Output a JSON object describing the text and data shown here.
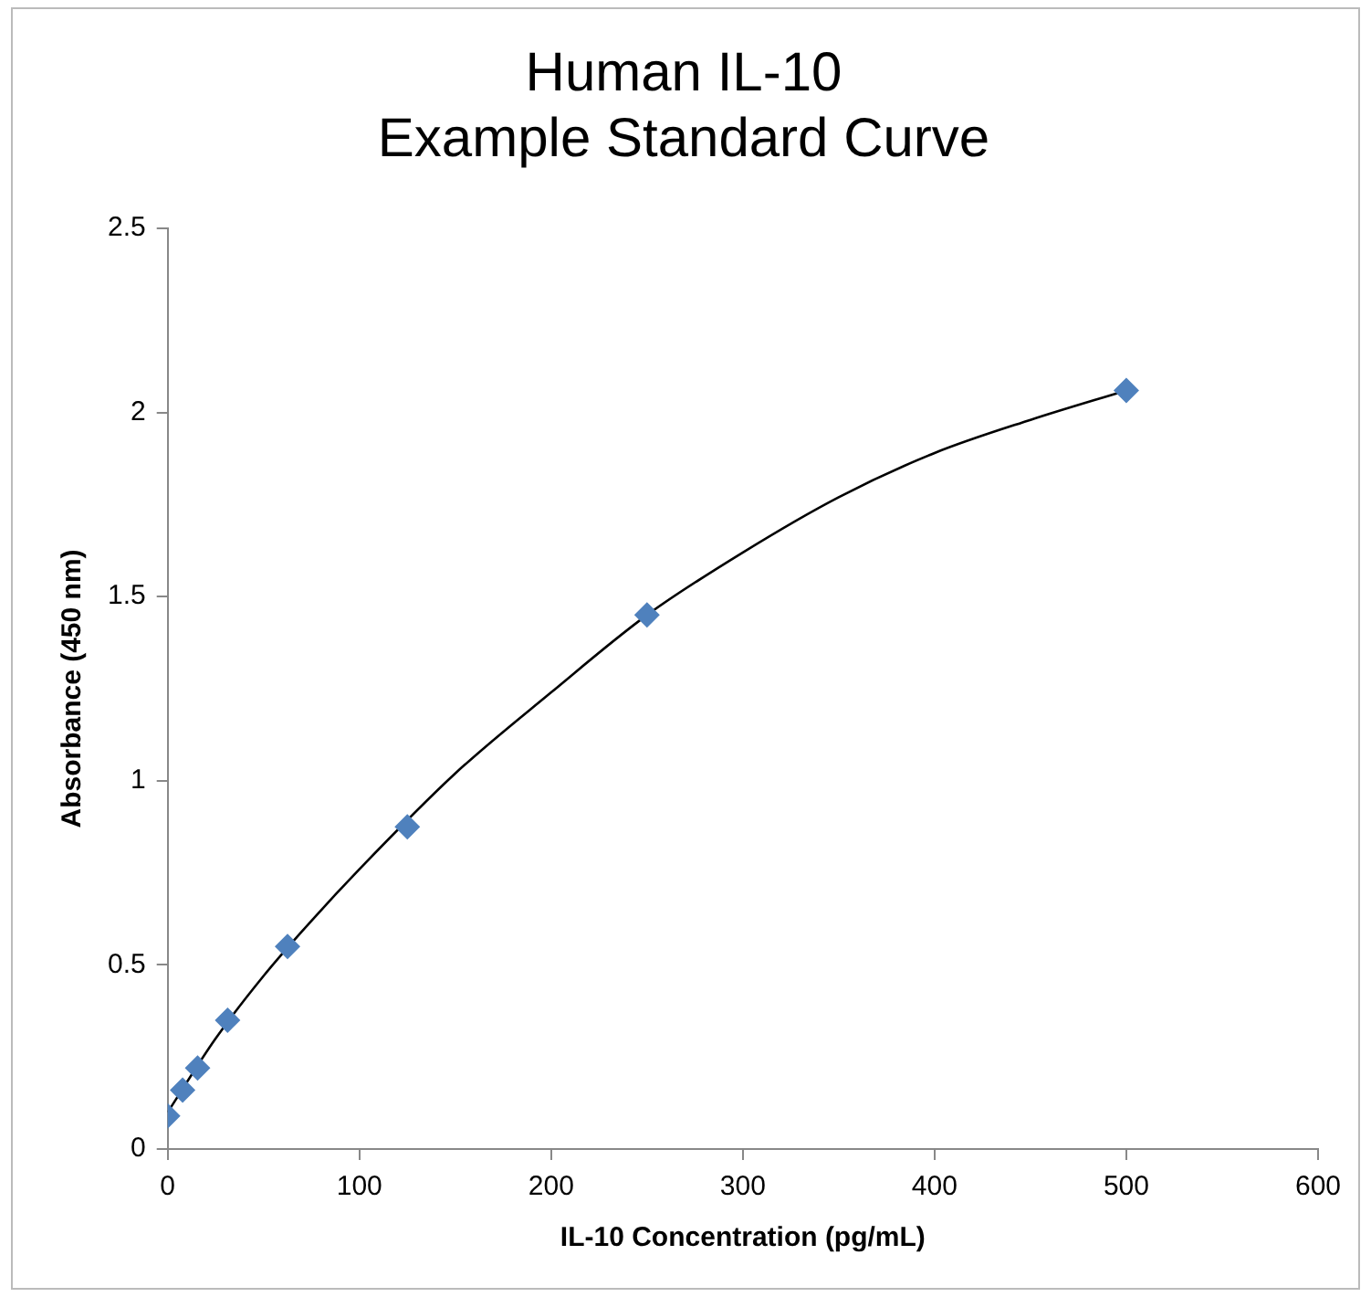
{
  "chart_data": {
    "type": "scatter",
    "title": "Human IL-10\nExample Standard Curve",
    "xlabel": "IL-10 Concentration (pg/mL)",
    "ylabel": "Absorbance (450 nm)",
    "xlim": [
      0,
      600
    ],
    "xticks": [
      0,
      100,
      200,
      300,
      400,
      500,
      600
    ],
    "ylim": [
      0,
      2.5
    ],
    "yticks": [
      0,
      0.5,
      1,
      1.5,
      2,
      2.5
    ],
    "grid": false,
    "legend": false,
    "series": [
      {
        "type": "line",
        "color": "#000000",
        "marker": "none",
        "x": [
          0,
          25,
          50,
          75,
          100,
          150,
          200,
          250,
          300,
          350,
          400,
          450,
          500
        ],
        "values": [
          0.1,
          0.3,
          0.47,
          0.62,
          0.76,
          1.02,
          1.24,
          1.45,
          1.62,
          1.77,
          1.89,
          1.98,
          2.06
        ]
      },
      {
        "type": "scatter",
        "color": "#4f81bd",
        "marker": "diamond",
        "x": [
          0,
          7.8,
          15.6,
          31.25,
          62.5,
          125,
          250,
          500
        ],
        "values": [
          0.09,
          0.16,
          0.22,
          0.35,
          0.55,
          0.875,
          1.45,
          2.06
        ]
      }
    ]
  }
}
